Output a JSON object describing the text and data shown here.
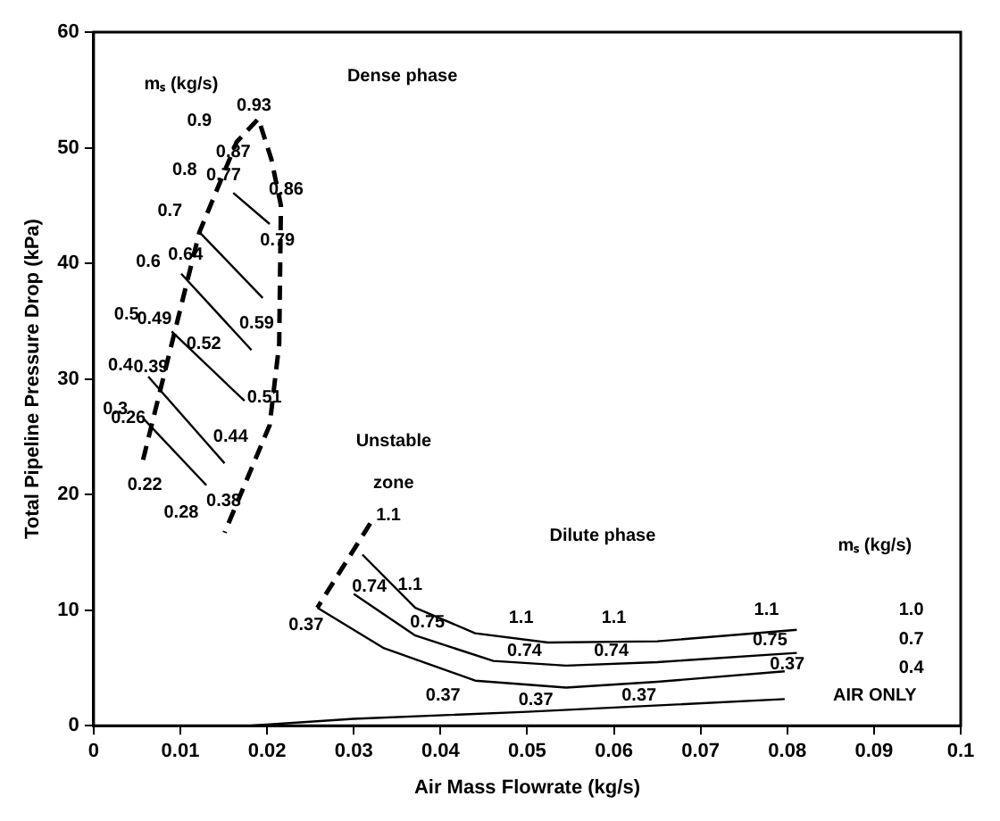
{
  "chart_data": {
    "type": "line",
    "xlabel": "Air Mass Flowrate (kg/s)",
    "ylabel": "Total Pipeline Pressure Drop (kPa)",
    "xlim": [
      0,
      0.1
    ],
    "xticks": [
      0,
      0.01,
      0.02,
      0.03,
      0.04,
      0.05,
      0.06,
      0.07,
      0.08,
      0.09,
      0.1
    ],
    "ylim": [
      0,
      60
    ],
    "yticks": [
      0,
      10,
      20,
      30,
      40,
      50,
      60
    ],
    "grid": false,
    "legend": false,
    "marker": "none",
    "series": [
      {
        "color": "#000000",
        "line_style": "solid",
        "x": [
          0.0161,
          0.0203
        ],
        "values": [
          46.1,
          43.4
        ]
      },
      {
        "color": "#000000",
        "line_style": "solid",
        "x": [
          0.0122,
          0.0195
        ],
        "values": [
          42.7,
          37.0
        ]
      },
      {
        "color": "#000000",
        "line_style": "solid",
        "x": [
          0.0101,
          0.0182
        ],
        "values": [
          39.1,
          32.5
        ]
      },
      {
        "color": "#000000",
        "line_style": "solid",
        "x": [
          0.009,
          0.0174
        ],
        "values": [
          34.1,
          28.1
        ]
      },
      {
        "color": "#000000",
        "line_style": "solid",
        "x": [
          0.0063,
          0.0151
        ],
        "values": [
          30.2,
          22.7
        ]
      },
      {
        "color": "#000000",
        "line_style": "solid",
        "x": [
          0.0057,
          0.013
        ],
        "values": [
          26.6,
          20.8
        ]
      },
      {
        "color": "#000000",
        "line_style": "dashed",
        "x": [
          0.0057,
          0.0084,
          0.0122,
          0.0165,
          0.019,
          0.0205,
          0.0216,
          0.0214,
          0.0203,
          0.0151
        ],
        "values": [
          23,
          31.2,
          42.7,
          50.5,
          52.5,
          49,
          45,
          33,
          26,
          16.7
        ]
      },
      {
        "color": "#000000",
        "line_style": "dashed",
        "x": [
          0.0319,
          0.0258
        ],
        "values": [
          17.5,
          10.2
        ]
      },
      {
        "color": "#000000",
        "line_style": "solid",
        "x": [
          0.031,
          0.0371,
          0.044,
          0.0524,
          0.065,
          0.0811
        ],
        "values": [
          14.8,
          10.2,
          8.0,
          7.2,
          7.3,
          8.3
        ]
      },
      {
        "color": "#000000",
        "line_style": "solid",
        "x": [
          0.03,
          0.0371,
          0.0461,
          0.0545,
          0.065,
          0.0811
        ],
        "values": [
          11.4,
          7.8,
          5.6,
          5.2,
          5.5,
          6.3
        ]
      },
      {
        "color": "#000000",
        "line_style": "solid",
        "x": [
          0.0258,
          0.0335,
          0.044,
          0.0545,
          0.065,
          0.0797
        ],
        "values": [
          10.2,
          6.7,
          3.9,
          3.3,
          3.8,
          4.7
        ]
      },
      {
        "color": "#000000",
        "line_style": "solid",
        "x": [
          0.018,
          0.03,
          0.05,
          0.0797
        ],
        "values": [
          0,
          0.6,
          1.2,
          2.3
        ]
      }
    ],
    "annotations": [
      "mₛ (kg/s)",
      "Dense phase",
      "0.9",
      "0.93",
      "0.8",
      "0.87",
      "0.7",
      "0.77",
      "0.86",
      "0.79",
      "0.6",
      "0.64",
      "0.59",
      "0.5",
      "0.49",
      "0.52",
      "0.51",
      "0.4",
      "0.39",
      "0.3",
      "0.26",
      "0.44",
      "0.22",
      "0.28",
      "0.38",
      "Unstable",
      "zone",
      "1.1",
      "Dilute phase",
      "mₛ (kg/s)",
      "0.37",
      "0.74",
      "1.1",
      "0.75",
      "1.1",
      "0.74",
      "1.1",
      "0.74",
      "1.1",
      "0.75",
      "0.37",
      "0.37",
      "0.37",
      "0.37",
      "1.0",
      "0.7",
      "0.4",
      "AIR ONLY"
    ]
  }
}
